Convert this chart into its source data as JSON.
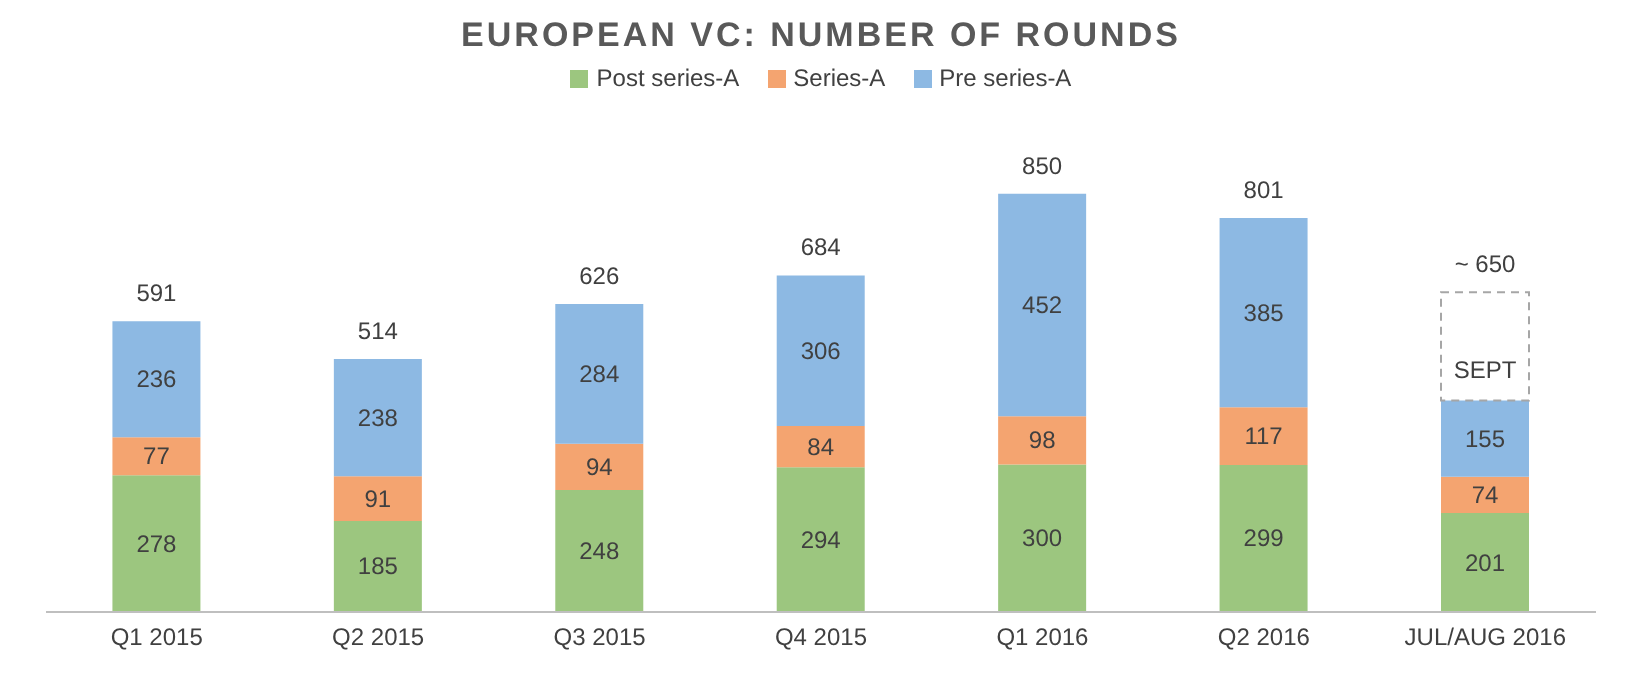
{
  "chart_data": {
    "type": "bar",
    "title": "EUROPEAN VC: NUMBER OF ROUNDS",
    "categories": [
      "Q1 2015",
      "Q2 2015",
      "Q3 2015",
      "Q4 2015",
      "Q1 2016",
      "Q2 2016",
      "JUL/AUG 2016"
    ],
    "stacked": true,
    "series": [
      {
        "name": "Post series-A",
        "color": "#9cc67f",
        "values": [
          278,
          185,
          248,
          294,
          300,
          299,
          201
        ],
        "value_labels": [
          "278",
          "185",
          "248",
          "294",
          "300",
          "299",
          "201"
        ]
      },
      {
        "name": "Series-A",
        "color": "#f4a470",
        "values": [
          77,
          91,
          94,
          84,
          98,
          117,
          74
        ],
        "value_labels": [
          "77",
          "91",
          "94",
          "84",
          "98",
          "117",
          "74"
        ]
      },
      {
        "name": "Pre series-A",
        "color": "#8db9e3",
        "values": [
          236,
          238,
          284,
          306,
          452,
          385,
          155
        ],
        "value_labels": [
          "236",
          "238",
          "284",
          "306",
          "452",
          "385",
          "155"
        ]
      },
      {
        "name": "SEPT",
        "type": "bar",
        "color": "#a6a6a6",
        "line_style": "dashed",
        "values": [
          null,
          null,
          null,
          null,
          null,
          null,
          220
        ]
      }
    ],
    "totals": [
      "591",
      "514",
      "626",
      "684",
      "850",
      "801",
      "~ 650"
    ],
    "tick_labels": "x",
    "legend": "top"
  }
}
